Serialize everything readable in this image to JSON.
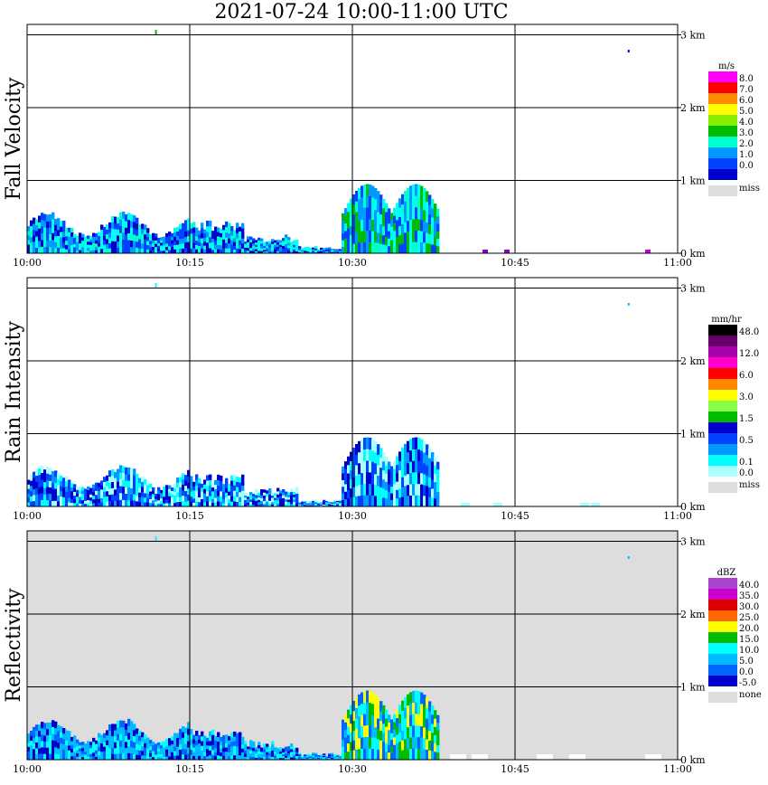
{
  "title": "2021-07-24  10:00-11:00 UTC",
  "x_ticks": [
    "10:00",
    "10:15",
    "10:30",
    "10:45",
    "11:00"
  ],
  "y_ticks": [
    "0 km",
    "1 km",
    "2 km",
    "3 km"
  ],
  "panels": [
    {
      "name": "Fall Velocity",
      "unit": "m/s",
      "background": "#ffffff",
      "colorbar": [
        {
          "color": "#ff00ff",
          "label": "8.0"
        },
        {
          "color": "#ff0000",
          "label": "7.0"
        },
        {
          "color": "#ff8c00",
          "label": "6.0"
        },
        {
          "color": "#ffff00",
          "label": "5.0"
        },
        {
          "color": "#88ee00",
          "label": "4.0"
        },
        {
          "color": "#00bb00",
          "label": "3.0"
        },
        {
          "color": "#00ffcc",
          "label": "2.0"
        },
        {
          "color": "#0099ff",
          "label": "1.0"
        },
        {
          "color": "#0044ff",
          "label": "0.0"
        },
        {
          "color": "#0000cc",
          "label": ""
        }
      ],
      "miss_label": "miss",
      "miss_color": "#dddddd"
    },
    {
      "name": "Rain Intensity",
      "unit": "mm/hr",
      "background": "#ffffff",
      "colorbar": [
        {
          "color": "#000000",
          "label": "48.0"
        },
        {
          "color": "#660066",
          "label": ""
        },
        {
          "color": "#aa00aa",
          "label": "12.0"
        },
        {
          "color": "#ff00cc",
          "label": ""
        },
        {
          "color": "#ff0000",
          "label": "6.0"
        },
        {
          "color": "#ff8800",
          "label": ""
        },
        {
          "color": "#ffff00",
          "label": "3.0"
        },
        {
          "color": "#88ff44",
          "label": ""
        },
        {
          "color": "#00bb00",
          "label": "1.5"
        },
        {
          "color": "#0000cc",
          "label": ""
        },
        {
          "color": "#0044ff",
          "label": "0.5"
        },
        {
          "color": "#0099ff",
          "label": ""
        },
        {
          "color": "#00ffff",
          "label": "0.1"
        },
        {
          "color": "#aaffff",
          "label": "0.0"
        }
      ],
      "miss_label": "miss",
      "miss_color": "#dddddd"
    },
    {
      "name": "Reflectivity",
      "unit": "dBZ",
      "background": "#dddddd",
      "colorbar": [
        {
          "color": "#aa44cc",
          "label": "40.0"
        },
        {
          "color": "#cc00cc",
          "label": "35.0"
        },
        {
          "color": "#dd0000",
          "label": "30.0"
        },
        {
          "color": "#ff6600",
          "label": "25.0"
        },
        {
          "color": "#ffff00",
          "label": "20.0"
        },
        {
          "color": "#00bb00",
          "label": "15.0"
        },
        {
          "color": "#00ffff",
          "label": "10.0"
        },
        {
          "color": "#00bbff",
          "label": "5.0"
        },
        {
          "color": "#0066ff",
          "label": "0.0"
        },
        {
          "color": "#0000cc",
          "label": "-5.0"
        }
      ],
      "miss_label": "none",
      "miss_color": "#dddddd"
    }
  ],
  "chart_data": [
    {
      "type": "heatmap",
      "title": "2021-07-24  10:00-11:00 UTC",
      "ylabel": "Fall Velocity",
      "units": "m/s",
      "x_range": [
        "10:00",
        "11:00"
      ],
      "y_range_km": [
        0,
        3.2
      ],
      "features": [
        {
          "time_range": [
            "10:00",
            "10:15"
          ],
          "top_km": 0.55,
          "dominant": "blue 0-1 m/s"
        },
        {
          "time_range": [
            "10:15",
            "10:25"
          ],
          "top_km": 0.45,
          "dominant": "blue 0-1 m/s"
        },
        {
          "time_range": [
            "10:30",
            "10:38"
          ],
          "top_km": 1.0,
          "dominant": "cyan 1-3 m/s with green 3-4 m/s cores"
        }
      ]
    },
    {
      "type": "heatmap",
      "ylabel": "Rain Intensity",
      "units": "mm/hr",
      "x_range": [
        "10:00",
        "11:00"
      ],
      "y_range_km": [
        0,
        3.2
      ],
      "features": [
        {
          "time_range": [
            "10:00",
            "10:15"
          ],
          "top_km": 0.5,
          "dominant": "0.0-0.5 mm/hr"
        },
        {
          "time_range": [
            "10:30",
            "10:38"
          ],
          "top_km": 1.0,
          "dominant": "0.1-1.5 mm/hr"
        }
      ]
    },
    {
      "type": "heatmap",
      "ylabel": "Reflectivity",
      "units": "dBZ",
      "x_range": [
        "10:00",
        "11:00"
      ],
      "y_range_km": [
        0,
        3.2
      ],
      "features": [
        {
          "time_range": [
            "10:00",
            "10:15"
          ],
          "top_km": 0.5,
          "dominant": "0-10 dBZ, 15 dBZ cores near surface"
        },
        {
          "time_range": [
            "10:30",
            "10:38"
          ],
          "top_km": 1.0,
          "dominant": "5-15 dBZ, 20 dBZ core"
        }
      ]
    }
  ]
}
